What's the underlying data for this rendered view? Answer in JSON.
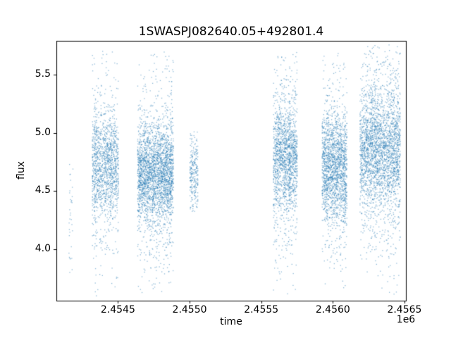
{
  "figure": {
    "background": "#ffffff",
    "text_color": "#000000",
    "spine_color": "#000000"
  },
  "chart_data": {
    "type": "scatter",
    "title": "1SWASPJ082640.05+492801.4",
    "xlabel": "time",
    "ylabel": "flux",
    "x_offset_label": "1e6",
    "xlim": [
      2454070,
      2456510
    ],
    "ylim": [
      3.56,
      5.79
    ],
    "xticks": [
      2454500,
      2455000,
      2455500,
      2456000,
      2456500
    ],
    "xtick_labels": [
      "2.4545",
      "2.4550",
      "2.4555",
      "2.4560",
      "2.4565"
    ],
    "yticks": [
      4.0,
      4.5,
      5.0,
      5.5
    ],
    "ytick_labels": [
      "4.0",
      "4.5",
      "5.0",
      "5.5"
    ],
    "grid": false,
    "legend_visible": false,
    "marker_color": "#1f77b4",
    "marker_alpha": 0.5,
    "marker_size_px": 1.3,
    "seed": 1337,
    "clusters": [
      {
        "t_center": 2454172,
        "t_halfwidth": 14,
        "n": 40,
        "streaks": 2,
        "flux_mean": 4.28,
        "flux_sd": 0.38,
        "tail_frac": 0.15,
        "tail_sd": 0.6,
        "flux_min": 3.72,
        "flux_max": 4.8
      },
      {
        "t_center": 2454412,
        "t_halfwidth": 90,
        "n": 1500,
        "streaks": 5,
        "flux_mean": 4.72,
        "flux_sd": 0.22,
        "tail_frac": 0.27,
        "tail_sd": 0.5,
        "flux_min": 3.6,
        "flux_max": 5.76
      },
      {
        "t_center": 2454762,
        "t_halfwidth": 124,
        "n": 2900,
        "streaks": 8,
        "flux_mean": 4.65,
        "flux_sd": 0.2,
        "tail_frac": 0.25,
        "tail_sd": 0.5,
        "flux_min": 3.6,
        "flux_max": 5.72
      },
      {
        "t_center": 2455030,
        "t_halfwidth": 27,
        "n": 260,
        "streaks": 2,
        "flux_mean": 4.66,
        "flux_sd": 0.16,
        "tail_frac": 0.1,
        "tail_sd": 0.3,
        "flux_min": 4.32,
        "flux_max": 5.05
      },
      {
        "t_center": 2455668,
        "t_halfwidth": 82,
        "n": 1700,
        "streaks": 5,
        "flux_mean": 4.78,
        "flux_sd": 0.22,
        "tail_frac": 0.27,
        "tail_sd": 0.5,
        "flux_min": 3.6,
        "flux_max": 5.7
      },
      {
        "t_center": 2456012,
        "t_halfwidth": 86,
        "n": 1950,
        "streaks": 6,
        "flux_mean": 4.7,
        "flux_sd": 0.22,
        "tail_frac": 0.27,
        "tail_sd": 0.5,
        "flux_min": 3.66,
        "flux_max": 5.72
      },
      {
        "t_center": 2456330,
        "t_halfwidth": 140,
        "n": 2900,
        "streaks": 9,
        "flux_mean": 4.85,
        "flux_sd": 0.25,
        "tail_frac": 0.3,
        "tail_sd": 0.55,
        "flux_min": 3.6,
        "flux_max": 5.76
      }
    ]
  }
}
